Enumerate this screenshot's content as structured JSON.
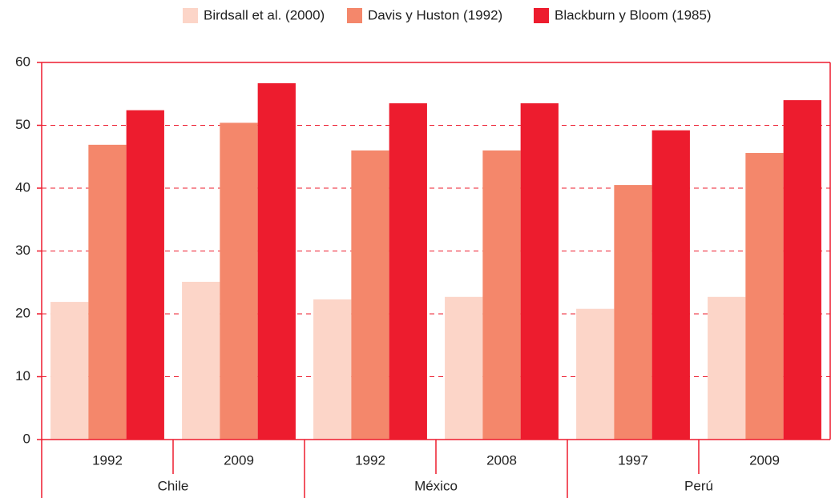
{
  "chart_data": {
    "type": "bar",
    "groups": [
      {
        "name": "Chile",
        "categories": [
          "1992",
          "2009"
        ]
      },
      {
        "name": "México",
        "categories": [
          "1992",
          "2008"
        ]
      },
      {
        "name": "Perú",
        "categories": [
          "1997",
          "2009"
        ]
      }
    ],
    "series": [
      {
        "name": "Birdsall et al. (2000)",
        "color": "#fcd5c8",
        "values": [
          21.9,
          25.1,
          22.3,
          22.7,
          20.8,
          22.7
        ]
      },
      {
        "name": "Davis y Huston (1992)",
        "color": "#f4876b",
        "values": [
          46.9,
          50.4,
          46.0,
          46.0,
          40.5,
          45.6
        ]
      },
      {
        "name": "Blackburn y Bloom (1985)",
        "color": "#ed1c2e",
        "values": [
          52.4,
          56.7,
          53.5,
          53.5,
          49.2,
          54.0
        ]
      }
    ],
    "ylim": [
      0,
      60
    ],
    "yticks": [
      0,
      10,
      20,
      30,
      40,
      50,
      60
    ],
    "grid": true,
    "legend": "top"
  }
}
